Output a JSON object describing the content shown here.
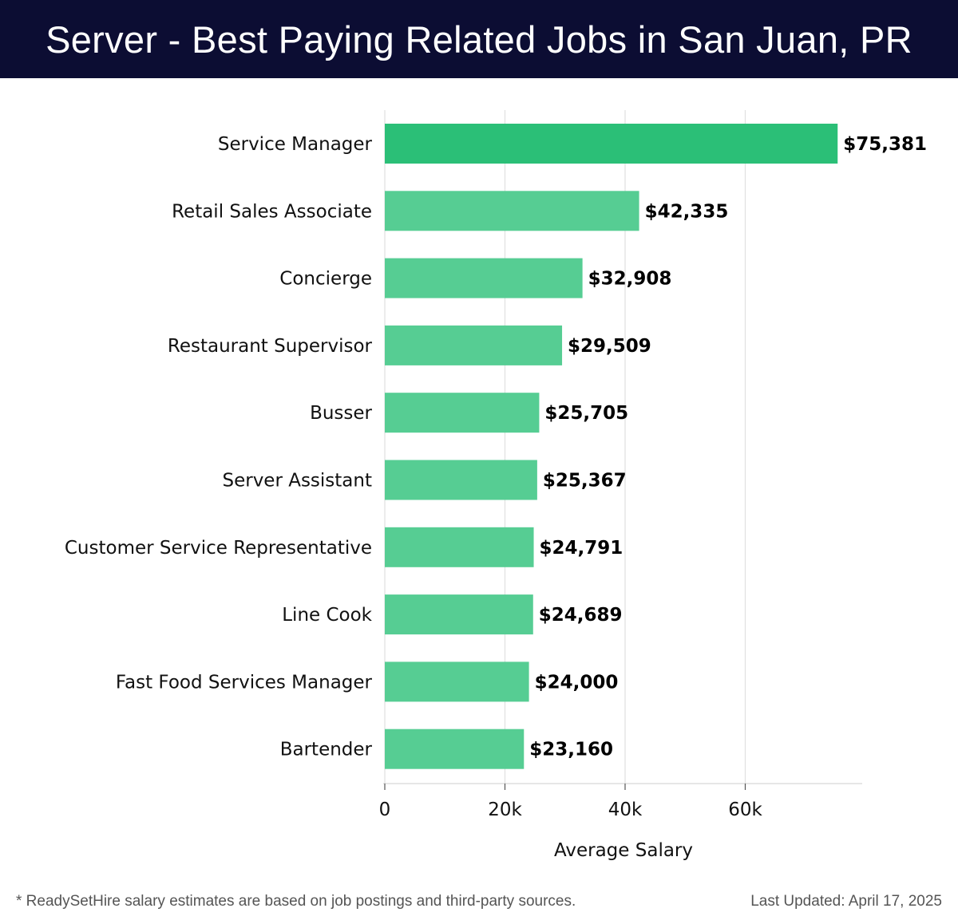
{
  "header": {
    "title": "Server - Best Paying Related Jobs in San Juan, PR"
  },
  "footer": {
    "note": "* ReadySetHire salary estimates are based on job postings and third-party sources.",
    "updated": "Last Updated: April 17, 2025"
  },
  "colors": {
    "header_bg": "#0c0d33",
    "bar_top": "#2bbf77",
    "bar": "#56cd93",
    "grid": "#e0e0e0"
  },
  "chart_data": {
    "type": "bar",
    "orientation": "horizontal",
    "title": "Server - Best Paying Related Jobs in San Juan, PR",
    "xlabel": "Average Salary",
    "ylabel": "",
    "categories": [
      "Service Manager",
      "Retail Sales Associate",
      "Concierge",
      "Restaurant Supervisor",
      "Busser",
      "Server Assistant",
      "Customer Service Representative",
      "Line Cook",
      "Fast Food Services Manager",
      "Bartender"
    ],
    "values": [
      75381,
      42335,
      32908,
      29509,
      25705,
      25367,
      24791,
      24689,
      24000,
      23160
    ],
    "value_labels": [
      "$75,381",
      "$42,335",
      "$32,908",
      "$29,509",
      "$25,705",
      "$25,367",
      "$24,791",
      "$24,689",
      "$24,000",
      "$23,160"
    ],
    "xticks": [
      0,
      20000,
      40000,
      60000
    ],
    "xtick_labels": [
      "0",
      "20k",
      "40k",
      "60k"
    ],
    "xlim": [
      0,
      79000
    ],
    "grid": true
  }
}
